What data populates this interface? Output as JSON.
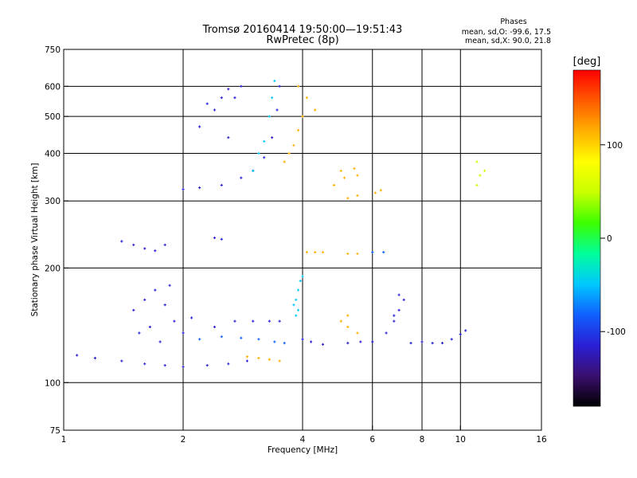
{
  "chart_data": {
    "type": "scatter",
    "title": "Tromsø 20160414 19:50:00—19:51:43",
    "subtitle": "RwPretec (8p)",
    "stats": {
      "heading": "Phases",
      "line_o": "mean, sd,O: -99.6, 17.5",
      "line_x": "mean, sd,X:  90.0, 21.8"
    },
    "xlabel": "Frequency [MHz]",
    "ylabel": "Stationary phase Virtual Height [km]",
    "x_scale": "log",
    "y_scale": "log",
    "xlim": [
      1,
      16
    ],
    "ylim": [
      75,
      750
    ],
    "x_ticks": [
      {
        "value": 1,
        "label": "1"
      },
      {
        "value": 2,
        "label": "2"
      },
      {
        "value": 4,
        "label": "4"
      },
      {
        "value": 6,
        "label": "6"
      },
      {
        "value": 8,
        "label": "8"
      },
      {
        "value": 10,
        "label": "10"
      },
      {
        "value": 16,
        "label": "16"
      }
    ],
    "x_grid": [
      2,
      4,
      6,
      8,
      10
    ],
    "y_ticks": [
      {
        "value": 75,
        "label": "75"
      },
      {
        "value": 100,
        "label": "100"
      },
      {
        "value": 200,
        "label": "200"
      },
      {
        "value": 300,
        "label": "300"
      },
      {
        "value": 400,
        "label": "400"
      },
      {
        "value": 500,
        "label": "500"
      },
      {
        "value": 600,
        "label": "600"
      },
      {
        "value": 750,
        "label": "750"
      }
    ],
    "y_grid": [
      100,
      200,
      300,
      400,
      500,
      600
    ],
    "grid": true,
    "colorbar": {
      "label": "[deg]",
      "range": [
        -180,
        180
      ],
      "ticks": [
        {
          "value": 100,
          "label": "100"
        },
        {
          "value": 0,
          "label": "0"
        },
        {
          "value": -100,
          "label": "-100"
        }
      ],
      "colors": [
        "#000000",
        "#3a0f6e",
        "#2a1fd6",
        "#1060ff",
        "#00c8ff",
        "#00ff9a",
        "#3cff00",
        "#c8ff00",
        "#ffff00",
        "#ffb000",
        "#ff5a00",
        "#ff0000"
      ]
    },
    "series": [
      {
        "values": [
          [
            1.08,
            118
          ],
          [
            1.2,
            116
          ],
          [
            1.4,
            114
          ],
          [
            1.6,
            112
          ],
          [
            1.8,
            111
          ],
          [
            2.0,
            110
          ],
          [
            2.3,
            111
          ],
          [
            2.6,
            112
          ],
          [
            2.9,
            114
          ]
        ],
        "phase": -110
      },
      {
        "values": [
          [
            1.5,
            155
          ],
          [
            1.6,
            165
          ],
          [
            1.7,
            175
          ],
          [
            1.8,
            160
          ],
          [
            1.9,
            145
          ],
          [
            2.0,
            135
          ],
          [
            1.65,
            140
          ],
          [
            1.55,
            135
          ],
          [
            1.75,
            128
          ],
          [
            1.85,
            180
          ]
        ],
        "phase": -105
      },
      {
        "values": [
          [
            2.1,
            148
          ],
          [
            2.4,
            140
          ],
          [
            2.7,
            145
          ],
          [
            3.0,
            145
          ],
          [
            3.3,
            145
          ],
          [
            3.5,
            145
          ]
        ],
        "phase": -100
      },
      {
        "values": [
          [
            2.2,
            130
          ],
          [
            2.5,
            132
          ],
          [
            2.8,
            131
          ],
          [
            3.1,
            130
          ],
          [
            3.4,
            128
          ],
          [
            3.6,
            127
          ]
        ],
        "phase": -95
      },
      {
        "values": [
          [
            2.0,
            322
          ],
          [
            2.2,
            325
          ],
          [
            2.5,
            330
          ],
          [
            2.8,
            345
          ],
          [
            3.0,
            360
          ],
          [
            3.2,
            390
          ],
          [
            3.35,
            440
          ],
          [
            3.45,
            520
          ],
          [
            3.5,
            600
          ]
        ],
        "phase": -100
      },
      {
        "values": [
          [
            2.3,
            540
          ],
          [
            2.4,
            520
          ],
          [
            2.5,
            560
          ],
          [
            2.6,
            590
          ],
          [
            2.7,
            560
          ],
          [
            2.8,
            600
          ],
          [
            2.2,
            470
          ],
          [
            2.6,
            440
          ]
        ],
        "phase": -115
      },
      {
        "values": [
          [
            3.0,
            360
          ],
          [
            3.1,
            400
          ],
          [
            3.2,
            430
          ],
          [
            3.3,
            500
          ],
          [
            3.35,
            560
          ],
          [
            3.4,
            620
          ]
        ],
        "phase": -60
      },
      {
        "values": [
          [
            3.6,
            380
          ],
          [
            3.7,
            400
          ],
          [
            3.8,
            420
          ],
          [
            3.9,
            460
          ],
          [
            4.0,
            500
          ],
          [
            4.1,
            560
          ],
          [
            3.9,
            600
          ],
          [
            4.3,
            520
          ]
        ],
        "phase": 110
      },
      {
        "values": [
          [
            2.9,
            117
          ],
          [
            3.1,
            116
          ],
          [
            3.3,
            115
          ],
          [
            3.5,
            114
          ]
        ],
        "phase": 120
      },
      {
        "values": [
          [
            4.1,
            220
          ],
          [
            4.3,
            220
          ],
          [
            4.5,
            220
          ],
          [
            5.2,
            218
          ],
          [
            5.5,
            218
          ]
        ],
        "phase": 110
      },
      {
        "values": [
          [
            6.0,
            220
          ],
          [
            6.4,
            220
          ]
        ],
        "phase": -80
      },
      {
        "values": [
          [
            4.0,
            130
          ],
          [
            4.2,
            128
          ],
          [
            4.5,
            126
          ],
          [
            5.2,
            127
          ],
          [
            5.6,
            128
          ],
          [
            6.0,
            128
          ]
        ],
        "phase": -110
      },
      {
        "values": [
          [
            4.0,
            190
          ],
          [
            3.95,
            185
          ],
          [
            3.9,
            175
          ],
          [
            3.85,
            165
          ],
          [
            3.8,
            160
          ],
          [
            3.9,
            155
          ],
          [
            3.85,
            150
          ]
        ],
        "phase": -60
      },
      {
        "values": [
          [
            1.5,
            230
          ],
          [
            1.6,
            225
          ],
          [
            1.7,
            222
          ],
          [
            1.8,
            230
          ],
          [
            2.4,
            240
          ],
          [
            2.5,
            238
          ],
          [
            1.4,
            235
          ]
        ],
        "phase": -110
      },
      {
        "values": [
          [
            5.0,
            145
          ],
          [
            5.2,
            140
          ],
          [
            5.5,
            135
          ],
          [
            5.2,
            150
          ]
        ],
        "phase": 120
      },
      {
        "values": [
          [
            6.5,
            135
          ],
          [
            6.8,
            145
          ],
          [
            7.0,
            155
          ],
          [
            7.2,
            165
          ],
          [
            7.0,
            170
          ],
          [
            6.8,
            150
          ]
        ],
        "phase": -110
      },
      {
        "values": [
          [
            7.5,
            127
          ],
          [
            8.0,
            128
          ],
          [
            8.5,
            127
          ],
          [
            9.0,
            127
          ],
          [
            9.5,
            130
          ],
          [
            10.0,
            134
          ],
          [
            10.3,
            137
          ]
        ],
        "phase": -100
      },
      {
        "values": [
          [
            5.0,
            360
          ],
          [
            5.1,
            345
          ],
          [
            5.4,
            365
          ],
          [
            5.5,
            350
          ],
          [
            4.8,
            330
          ],
          [
            5.2,
            305
          ],
          [
            5.5,
            310
          ],
          [
            6.3,
            320
          ],
          [
            6.1,
            315
          ]
        ],
        "phase": 130
      },
      {
        "values": [
          [
            11.0,
            330
          ],
          [
            11.0,
            380
          ],
          [
            11.5,
            360
          ],
          [
            11.2,
            350
          ]
        ],
        "phase": 40
      }
    ]
  }
}
